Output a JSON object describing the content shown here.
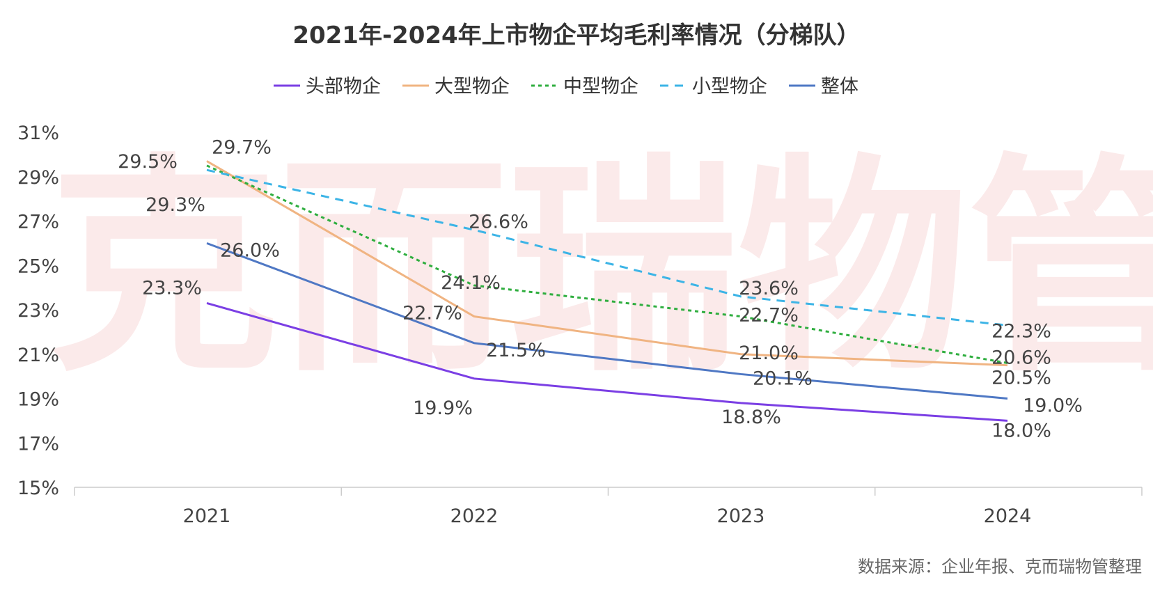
{
  "chart_data": {
    "type": "line",
    "title": "2021年-2024年上市物企平均毛利率情况（分梯队）",
    "x": [
      "2021",
      "2022",
      "2023",
      "2024"
    ],
    "ylim": [
      15,
      31
    ],
    "yticks": [
      15,
      17,
      19,
      21,
      23,
      25,
      27,
      29,
      31
    ],
    "ytick_format": "%",
    "legend_position": "top",
    "grid": false,
    "series": [
      {
        "name": "头部物企",
        "color": "#7b3fe4",
        "dash": "solid",
        "values": [
          23.3,
          19.9,
          18.8,
          18.0
        ],
        "labels": [
          "23.3%",
          "19.9%",
          "18.8%",
          "18.0%"
        ]
      },
      {
        "name": "大型物企",
        "color": "#f0b482",
        "dash": "solid",
        "values": [
          29.7,
          22.7,
          21.0,
          20.5
        ],
        "labels": [
          "29.7%",
          "22.7%",
          "21.0%",
          "20.5%"
        ]
      },
      {
        "name": "中型物企",
        "color": "#2fae3f",
        "dash": "dotted",
        "values": [
          29.5,
          24.1,
          22.7,
          20.6
        ],
        "labels": [
          "29.5%",
          "24.1%",
          "22.7%",
          "20.6%"
        ]
      },
      {
        "name": "小型物企",
        "color": "#3cb4e6",
        "dash": "dashed",
        "values": [
          29.3,
          26.6,
          23.6,
          22.3
        ],
        "labels": [
          "29.3%",
          "26.6%",
          "23.6%",
          "22.3%"
        ]
      },
      {
        "name": "整体",
        "color": "#4f78c4",
        "dash": "solid",
        "values": [
          26.0,
          21.5,
          20.1,
          19.0
        ],
        "labels": [
          "26.0%",
          "21.5%",
          "20.1%",
          "19.0%"
        ]
      }
    ]
  },
  "watermark": "克而瑞物管",
  "source": "数据来源：企业年报、克而瑞物管整理"
}
